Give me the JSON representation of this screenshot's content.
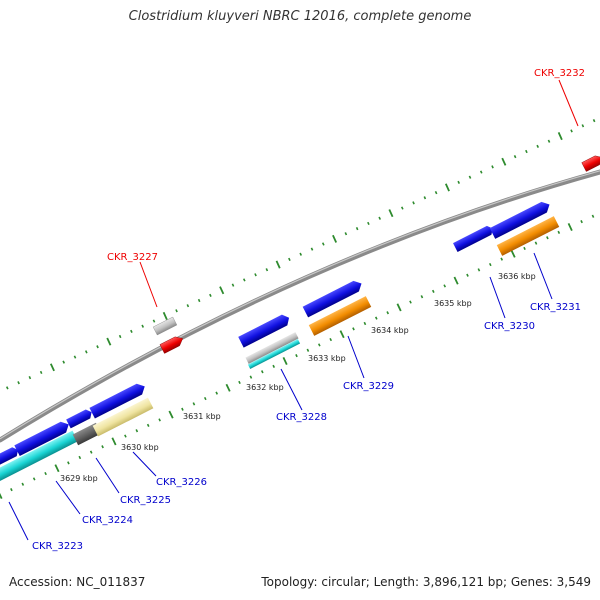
{
  "header": {
    "title": "Clostridium kluyveri NBRC 12016, complete genome"
  },
  "footer": {
    "accession": "Accession: NC_011837",
    "summary": "Topology: circular; Length: 3,896,121 bp; Genes: 3,549"
  },
  "colors": {
    "backbone": "#808080",
    "tick": "#2e8b2e",
    "label_minus": "#0000cc",
    "label_plus": "#ee0000",
    "blue": "#1010e0",
    "cyan": "#19d3d3",
    "orange": "#f28c00",
    "khaki": "#efe4a0",
    "gray": "#c0c0c0",
    "darkgray": "#606060",
    "red": "#ee0000"
  },
  "scale_labels": [
    "3629 kbp",
    "3630 kbp",
    "3631 kbp",
    "3632 kbp",
    "3633 kbp",
    "3634 kbp",
    "3635 kbp",
    "3636 kbp"
  ],
  "gene_labels": {
    "minus": [
      "CKR_3223",
      "CKR_3224",
      "CKR_3225",
      "CKR_3226",
      "CKR_3228",
      "CKR_3229",
      "CKR_3230",
      "CKR_3231"
    ],
    "plus": [
      "CKR_3227",
      "CKR_3232"
    ]
  }
}
